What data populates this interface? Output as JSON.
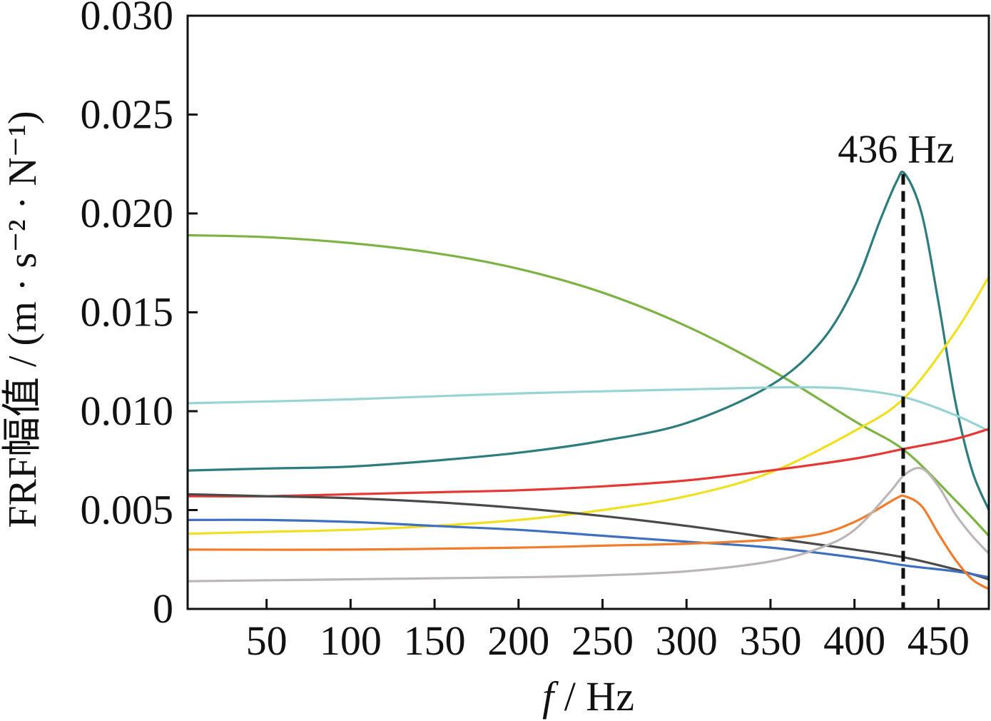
{
  "chart_data": {
    "type": "line",
    "xlabel": {
      "italic": "f",
      "rest": " / Hz"
    },
    "ylabel": "FRF幅值 / (m · s⁻² · N⁻¹)",
    "xlim": [
      3,
      480
    ],
    "ylim": [
      0,
      0.03
    ],
    "xticks": [
      50,
      100,
      150,
      200,
      250,
      300,
      350,
      400,
      450
    ],
    "yticks": [
      {
        "value": 0,
        "label": "0"
      },
      {
        "value": 0.005,
        "label": "0.005"
      },
      {
        "value": 0.01,
        "label": "0.010"
      },
      {
        "value": 0.015,
        "label": "0.015"
      },
      {
        "value": 0.02,
        "label": "0.020"
      },
      {
        "value": 0.025,
        "label": "0.025"
      },
      {
        "value": 0.03,
        "label": "0.030"
      }
    ],
    "annotation": {
      "text": "436 Hz",
      "x": 429,
      "y": 0.022
    },
    "series": [
      {
        "color": "#7cb342",
        "x": [
          3,
          50,
          100,
          150,
          200,
          250,
          300,
          350,
          400,
          430,
          460,
          480
        ],
        "y": [
          0.0189,
          0.0188,
          0.0185,
          0.018,
          0.0172,
          0.016,
          0.0143,
          0.0121,
          0.0095,
          0.008,
          0.0055,
          0.0037
        ]
      },
      {
        "color": "#2e7d7d",
        "x": [
          3,
          50,
          100,
          150,
          200,
          250,
          300,
          350,
          380,
          400,
          415,
          425,
          430,
          440,
          450,
          460,
          470,
          480
        ],
        "y": [
          0.007,
          0.0071,
          0.0072,
          0.0075,
          0.0079,
          0.0085,
          0.0094,
          0.0113,
          0.0135,
          0.0163,
          0.0196,
          0.0216,
          0.022,
          0.02,
          0.0155,
          0.0105,
          0.007,
          0.005
        ]
      },
      {
        "color": "#99d4d4",
        "x": [
          3,
          100,
          200,
          300,
          350,
          380,
          400,
          430,
          460,
          480
        ],
        "y": [
          0.0104,
          0.0106,
          0.0109,
          0.0111,
          0.0112,
          0.0112,
          0.0111,
          0.0107,
          0.0098,
          0.009
        ]
      },
      {
        "color": "#f0e020",
        "x": [
          3,
          50,
          100,
          150,
          200,
          250,
          300,
          350,
          400,
          430,
          460,
          480
        ],
        "y": [
          0.0038,
          0.0039,
          0.004,
          0.0042,
          0.0045,
          0.005,
          0.0057,
          0.0069,
          0.009,
          0.0107,
          0.014,
          0.0168
        ]
      },
      {
        "color": "#e53935",
        "x": [
          3,
          50,
          100,
          150,
          200,
          250,
          300,
          350,
          400,
          430,
          460,
          480
        ],
        "y": [
          0.0057,
          0.0057,
          0.0058,
          0.0059,
          0.006,
          0.0062,
          0.0065,
          0.007,
          0.0076,
          0.0081,
          0.0086,
          0.0091
        ]
      },
      {
        "color": "#4a4a4a",
        "x": [
          3,
          50,
          100,
          150,
          200,
          250,
          300,
          350,
          400,
          430,
          460,
          480
        ],
        "y": [
          0.0058,
          0.0057,
          0.0056,
          0.0054,
          0.0051,
          0.0047,
          0.0042,
          0.0036,
          0.003,
          0.0026,
          0.002,
          0.0015
        ]
      },
      {
        "color": "#3f6fbf",
        "x": [
          3,
          50,
          100,
          150,
          200,
          250,
          300,
          350,
          400,
          430,
          460,
          480
        ],
        "y": [
          0.0045,
          0.0045,
          0.0044,
          0.0042,
          0.004,
          0.0037,
          0.0034,
          0.0031,
          0.0026,
          0.0022,
          0.0019,
          0.0016
        ]
      },
      {
        "color": "#f07c2c",
        "x": [
          3,
          100,
          200,
          250,
          300,
          350,
          380,
          400,
          415,
          425,
          430,
          440,
          450,
          460,
          470,
          480
        ],
        "y": [
          0.003,
          0.003,
          0.0031,
          0.0032,
          0.0033,
          0.0035,
          0.0038,
          0.0044,
          0.0051,
          0.0056,
          0.0057,
          0.0052,
          0.0038,
          0.0025,
          0.0015,
          0.001
        ]
      },
      {
        "color": "#bdb6b6",
        "x": [
          3,
          100,
          200,
          250,
          300,
          350,
          380,
          400,
          420,
          430,
          440,
          450,
          460,
          470,
          480
        ],
        "y": [
          0.0014,
          0.0015,
          0.0016,
          0.0017,
          0.0019,
          0.0024,
          0.0031,
          0.004,
          0.0058,
          0.0068,
          0.0071,
          0.0062,
          0.0048,
          0.0037,
          0.0028
        ]
      }
    ]
  }
}
